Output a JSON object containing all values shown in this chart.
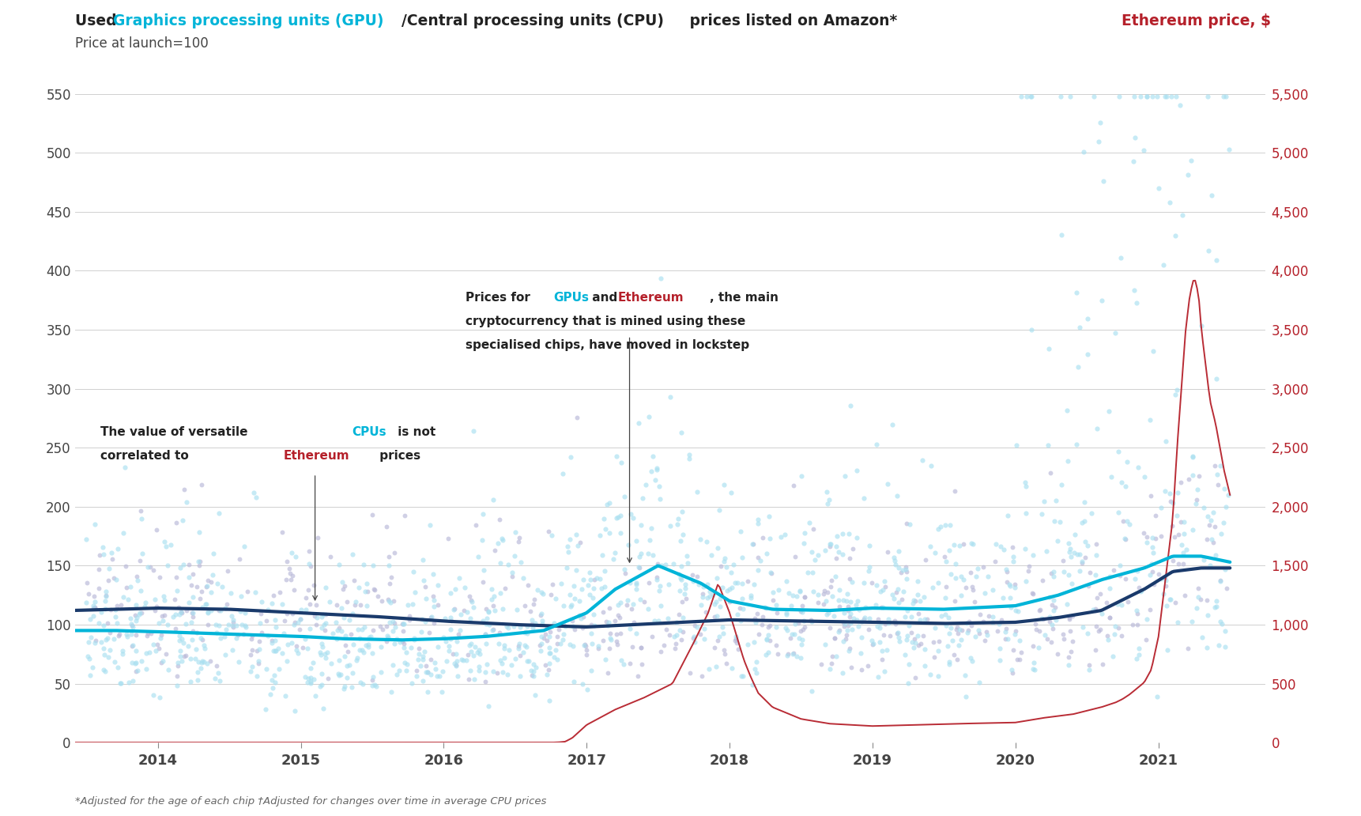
{
  "background_color": "#ffffff",
  "grid_color": "#d0d0d0",
  "scatter_gpu_color": "#a8dff0",
  "scatter_cpu_color": "#b8b8d8",
  "line_gpu_color": "#00b4d8",
  "line_cpu_color": "#1a3a6b",
  "line_eth_color": "#b5202a",
  "eth_label_color": "#b5202a",
  "ann_cpu_color": "#00b4d8",
  "ann_eth_color": "#b5202a",
  "title_color": "#222222",
  "axis_text_color": "#444444",
  "xlim": [
    2013.42,
    2021.75
  ],
  "ylim_left": [
    0,
    550
  ],
  "ylim_right": [
    0,
    5500
  ],
  "yticks_left": [
    0,
    50,
    100,
    150,
    200,
    250,
    300,
    350,
    400,
    450,
    500,
    550
  ],
  "yticks_right": [
    0,
    500,
    1000,
    1500,
    2000,
    2500,
    3000,
    3500,
    4000,
    4500,
    5000,
    5500
  ],
  "xticks": [
    2014,
    2015,
    2016,
    2017,
    2018,
    2019,
    2020,
    2021
  ],
  "footnote": "*Adjusted for the age of each chip †Adjusted for changes over time in average CPU prices",
  "gpu_trend_t": [
    2013.4,
    2013.7,
    2014.0,
    2014.5,
    2015.0,
    2015.3,
    2015.7,
    2016.0,
    2016.3,
    2016.7,
    2017.0,
    2017.2,
    2017.5,
    2017.8,
    2018.0,
    2018.3,
    2018.7,
    2019.0,
    2019.5,
    2020.0,
    2020.3,
    2020.6,
    2020.9,
    2021.1,
    2021.3,
    2021.5
  ],
  "gpu_trend_v": [
    95,
    95,
    94,
    92,
    90,
    88,
    87,
    88,
    90,
    95,
    110,
    130,
    150,
    135,
    120,
    113,
    112,
    114,
    113,
    116,
    125,
    138,
    148,
    158,
    158,
    153
  ],
  "cpu_trend_t": [
    2013.4,
    2013.7,
    2014.0,
    2014.5,
    2015.0,
    2015.5,
    2016.0,
    2016.5,
    2017.0,
    2017.5,
    2018.0,
    2018.5,
    2019.0,
    2019.5,
    2020.0,
    2020.3,
    2020.6,
    2020.9,
    2021.1,
    2021.3,
    2021.5
  ],
  "cpu_trend_v": [
    112,
    113,
    114,
    113,
    110,
    107,
    103,
    100,
    98,
    101,
    104,
    103,
    102,
    101,
    102,
    106,
    112,
    130,
    145,
    148,
    148
  ],
  "eth_t": [
    2013.4,
    2016.75,
    2016.8,
    2016.85,
    2016.9,
    2017.0,
    2017.2,
    2017.4,
    2017.6,
    2017.75,
    2017.85,
    2017.92,
    2018.0,
    2018.05,
    2018.1,
    2018.15,
    2018.2,
    2018.3,
    2018.5,
    2018.7,
    2019.0,
    2019.3,
    2019.6,
    2020.0,
    2020.2,
    2020.4,
    2020.5,
    2020.6,
    2020.7,
    2020.75,
    2020.8,
    2020.85,
    2020.9,
    2020.95,
    2021.0,
    2021.03,
    2021.06,
    2021.1,
    2021.13,
    2021.16,
    2021.19,
    2021.22,
    2021.25,
    2021.28,
    2021.3,
    2021.33,
    2021.36,
    2021.4,
    2021.43,
    2021.46,
    2021.5
  ],
  "eth_v": [
    0,
    0,
    2,
    8,
    40,
    150,
    280,
    380,
    500,
    850,
    1100,
    1350,
    1100,
    900,
    700,
    550,
    420,
    300,
    200,
    160,
    140,
    150,
    160,
    170,
    210,
    240,
    270,
    300,
    340,
    370,
    410,
    460,
    510,
    620,
    900,
    1200,
    1500,
    1900,
    2500,
    3000,
    3500,
    3800,
    3950,
    3800,
    3500,
    3200,
    2900,
    2700,
    2500,
    2300,
    2100
  ]
}
